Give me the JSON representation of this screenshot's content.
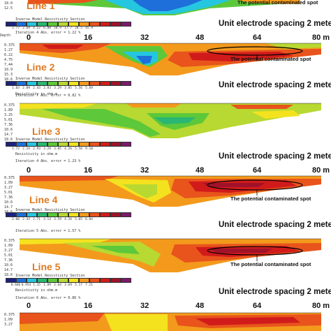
{
  "section_title": "Inverse Model Resistivity Section",
  "resistivity_unit": "Resistivity in ohm.m",
  "depth_label": "Depth",
  "unit_label": "m",
  "x_ticks": [
    "0",
    "16",
    "32",
    "48",
    "64",
    "80 m"
  ],
  "spacing_text": "Unit electrode spacing 2 meter",
  "contaminated_text": "The potential contaminated spot",
  "colors": {
    "dark_blue": "#1a237e",
    "blue": "#1e6fd9",
    "cyan": "#25c6e0",
    "teal": "#2bb673",
    "green": "#5cc83a",
    "yellow_green": "#b8d832",
    "yellow": "#f4e21f",
    "orange": "#f39a1c",
    "red_orange": "#e8541c",
    "red": "#d11b1b",
    "crimson": "#a0122a",
    "purple": "#7a1a6a",
    "label_orange": "#e07a20"
  },
  "line1": {
    "label": "Line 1",
    "depths": [
      "18.0",
      "12.5"
    ],
    "colorbar_values": [
      "2.77",
      "2.69",
      "4.22",
      "6.80",
      "10.9",
      "17.7",
      "28.5",
      "45.9"
    ]
  },
  "line2": {
    "label": "Line 2",
    "iteration": "Iteration 4 Abs. error = 1.22 %",
    "depths": [
      "0.375",
      "1.27",
      "6.22",
      "4.75",
      "7.44",
      "10.9",
      "15.3",
      "18.6"
    ],
    "colorbar_values": [
      "1.83",
      "2.09",
      "2.43",
      "2.83",
      "3.29",
      "3.85",
      "5.56",
      "5.69"
    ]
  },
  "line3": {
    "label": "Line 3",
    "iteration": "Iteration 7 Abs. error = 0.82 %",
    "depths": [
      "0.375",
      "1.89",
      "3.25",
      "5.01",
      "7.36",
      "10.6",
      "14.7",
      "18.6"
    ],
    "colorbar_values": [
      "1.72",
      "2.24",
      "2.93",
      "3.29",
      "3.85",
      "4.26",
      "5.56",
      "9.18"
    ]
  },
  "line4": {
    "label": "Line 4",
    "iteration": "Iteration 4 Abs. error = 1.23 %",
    "depths": [
      "0.375",
      "1.09",
      "3.27",
      "5.01",
      "7.36",
      "10.6",
      "14.7",
      "18.6"
    ],
    "colorbar_values": [
      "2.00",
      "2.43",
      "2.71",
      "3.13",
      "3.59",
      "4.26",
      "5.05",
      "6.84"
    ]
  },
  "line5": {
    "label": "Line 5",
    "iteration": "Iteration 5 Abs. error = 1.57 %",
    "depths": [
      "0.375",
      "1.09",
      "3.27",
      "5.01",
      "7.36",
      "10.6",
      "14.7",
      "18.6"
    ],
    "colorbar_values": [
      "0.686",
      "0.954",
      "1.35",
      "1.89",
      "2.64",
      "3.69",
      "5.17",
      "7.21"
    ]
  },
  "line6": {
    "iteration": "Iteration 6 Abs. error = 0.86 %",
    "depths": [
      "0.375",
      "1.09",
      "3.27"
    ]
  }
}
